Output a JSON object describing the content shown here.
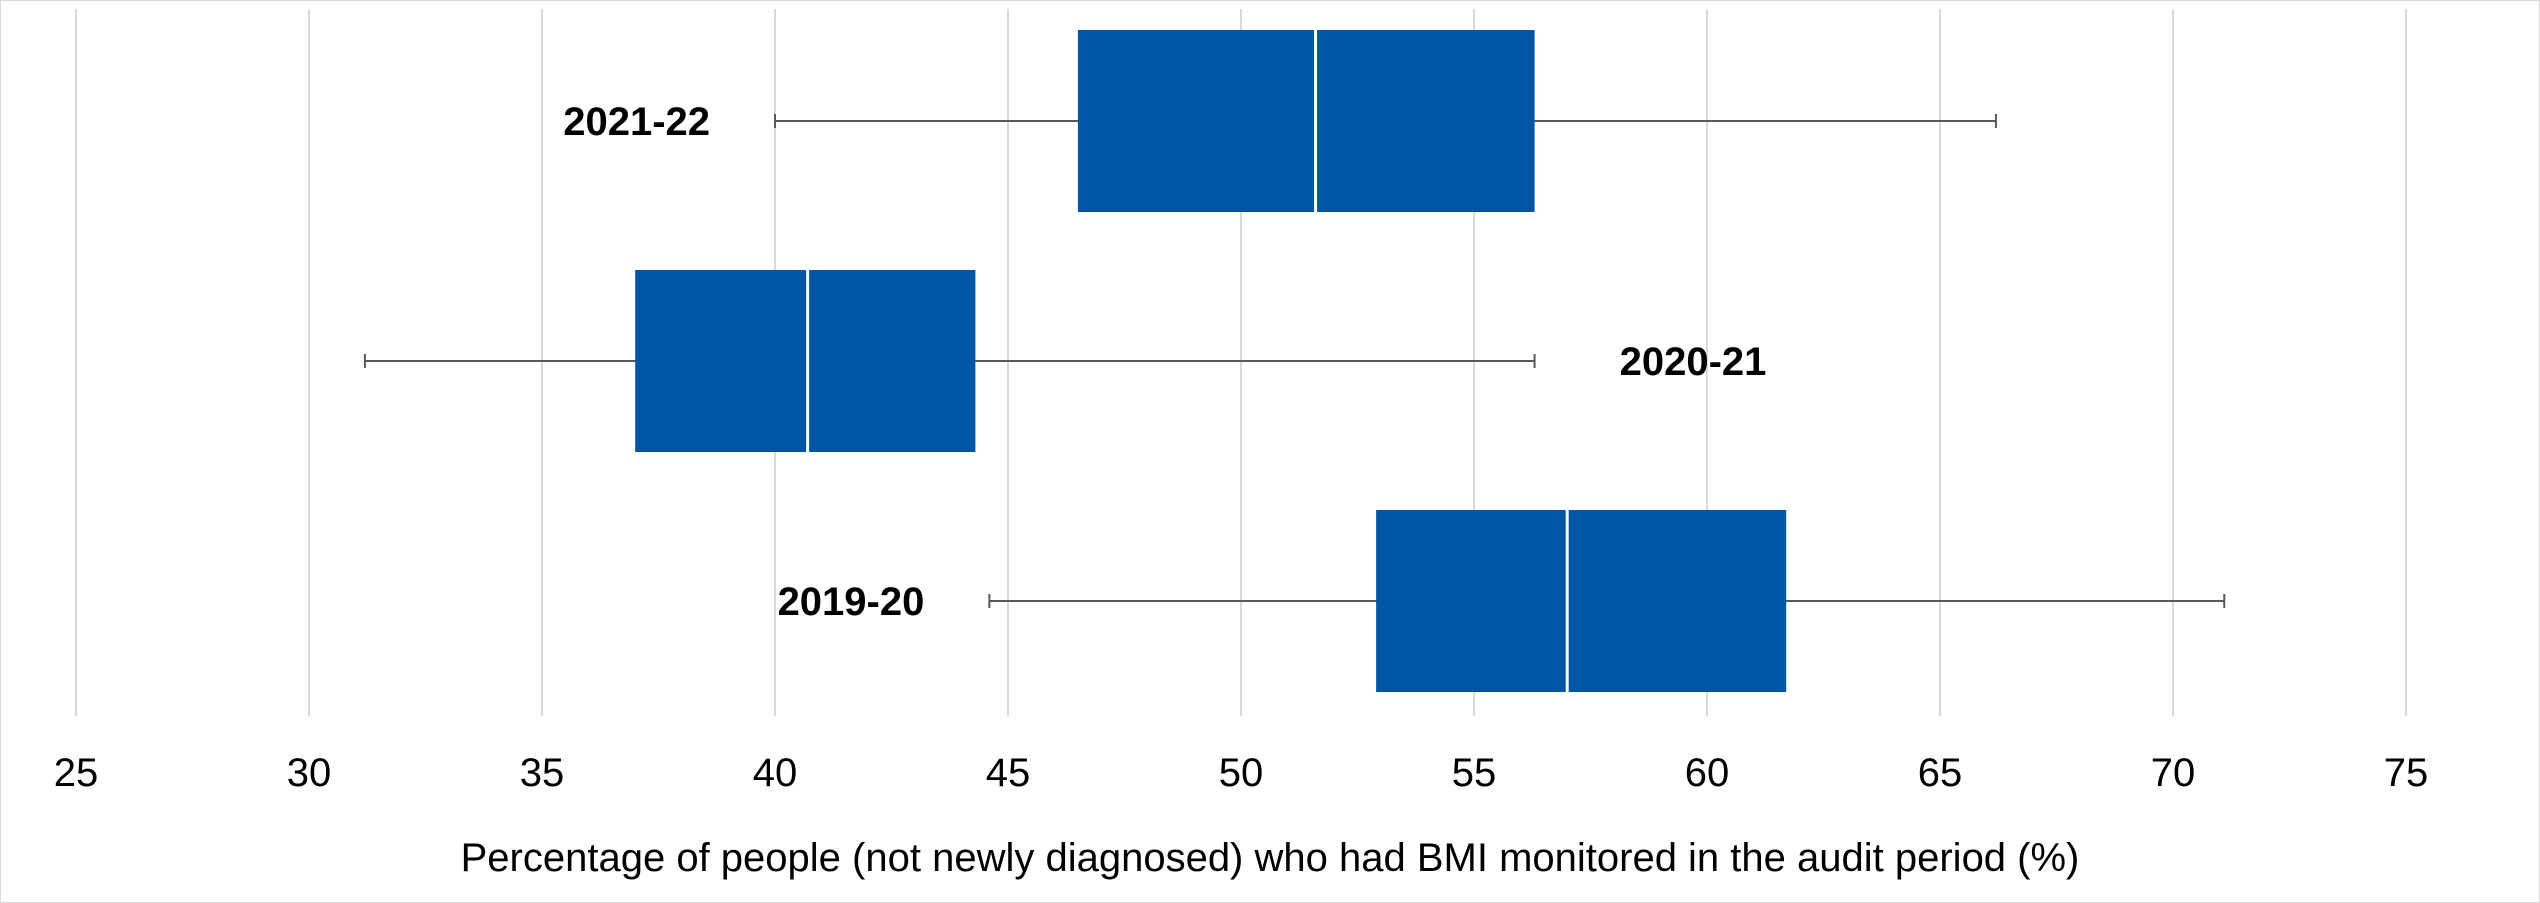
{
  "chart_data": {
    "type": "box",
    "orientation": "horizontal",
    "title": "",
    "xlabel": "Percentage of people (not newly diagnosed) who had BMI monitored in the audit period (%)",
    "ylabel": "",
    "xlim": [
      25,
      75
    ],
    "x_ticks": [
      "25",
      "30",
      "35",
      "40",
      "45",
      "50",
      "55",
      "60",
      "65",
      "70",
      "75"
    ],
    "grid": true,
    "box_color": "#0055A5",
    "median_color": "#FFFFFF",
    "whisker_color": "#595959",
    "grid_color": "#D9D9D9",
    "series": [
      {
        "name": "2021-22",
        "min": 40.0,
        "q1": 46.5,
        "median": 51.6,
        "q3": 56.3,
        "max": 66.2,
        "label_side": "left"
      },
      {
        "name": "2020-21",
        "min": 31.2,
        "q1": 37.0,
        "median": 40.7,
        "q3": 44.3,
        "max": 56.3,
        "label_side": "right"
      },
      {
        "name": "2019-20",
        "min": 44.6,
        "q1": 52.9,
        "median": 57.0,
        "q3": 61.7,
        "max": 71.1,
        "label_side": "left"
      }
    ]
  }
}
